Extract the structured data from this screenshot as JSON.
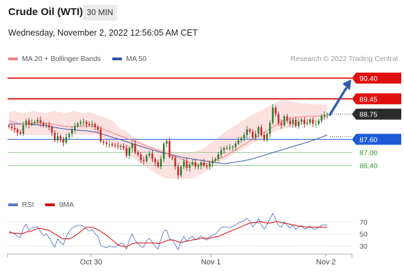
{
  "header": {
    "title": "Crude Oil (WTI)",
    "timeframe": "30 MIN",
    "datetime": "Wednesday, November 2, 2022 12:56:05 AM CET"
  },
  "legend": {
    "ma20_label": "MA 20 + Bollinger Bands",
    "ma50_label": "MA 50",
    "copyright": "Research © 2022 Trading Central"
  },
  "rsi_legend": {
    "rsi_label": "RSI",
    "ma9_label": "9MA"
  },
  "colors": {
    "up_candle": "#2e7d32",
    "down_candle": "#c62828",
    "bb_fill": "#fbd9d9",
    "ma20": "#f08080",
    "ma50": "#3355aa",
    "red_level": "#e01010",
    "blue_level": "#1e5bd8",
    "green_level": "#2a9d2a",
    "arrow": "#2e5fa8",
    "rsi": "#5577cc",
    "rsi_ma": "#dd0000"
  },
  "chart_data": [
    {
      "type": "candlestick",
      "title": "Crude Oil (WTI)",
      "timeframe": "30 MIN",
      "ylim": [
        85.2,
        90.9
      ],
      "x_ticks": [
        "Oct 30",
        "Nov 1",
        "Nov 2"
      ],
      "levels": [
        {
          "value": 90.4,
          "label": "90.40",
          "kind": "resistance",
          "color": "#e01010"
        },
        {
          "value": 89.45,
          "label": "89.45",
          "kind": "resistance",
          "color": "#e01010"
        },
        {
          "value": 88.75,
          "label": "88.75",
          "kind": "last",
          "color": "#2b2b2b"
        },
        {
          "value": 87.6,
          "label": "87.60",
          "kind": "pivot",
          "color": "#1e5bd8"
        },
        {
          "value": 87.0,
          "label": "87.00",
          "kind": "support",
          "color": "#2a9d2a"
        },
        {
          "value": 86.4,
          "label": "86.40",
          "kind": "support",
          "color": "#2a9d2a"
        }
      ],
      "close": [
        88.18,
        88.12,
        88.05,
        87.92,
        87.85,
        88.25,
        88.45,
        88.28,
        88.35,
        88.4,
        88.48,
        88.34,
        88.22,
        88.25,
        88.15,
        87.9,
        87.55,
        87.75,
        87.6,
        87.45,
        87.7,
        87.85,
        88.05,
        88.2,
        88.32,
        88.38,
        88.4,
        88.3,
        88.25,
        88.3,
        88.15,
        88.05,
        87.5,
        87.45,
        87.38,
        87.38,
        87.32,
        87.3,
        87.28,
        87.3,
        87.2,
        86.85,
        87.2,
        87.4,
        87.0,
        86.9,
        86.65,
        86.6,
        86.85,
        86.95,
        86.7,
        86.55,
        86.35,
        86.7,
        87.4,
        87.52,
        86.8,
        86.75,
        86.35,
        85.95,
        86.35,
        86.6,
        86.3,
        86.45,
        86.55,
        86.35,
        86.4,
        86.55,
        86.4,
        86.35,
        86.5,
        86.62,
        86.7,
        86.9,
        87.1,
        87.2,
        87.2,
        87.22,
        87.25,
        87.4,
        87.55,
        87.65,
        87.8,
        88.05,
        87.95,
        87.68,
        87.85,
        88.15,
        87.8,
        87.6,
        87.85,
        88.35,
        89.05,
        88.75,
        88.35,
        88.25,
        88.65,
        88.45,
        88.3,
        88.5,
        88.2,
        88.4,
        88.5,
        88.3,
        88.35,
        88.5,
        88.3,
        88.3,
        88.45,
        88.65,
        88.72,
        88.75
      ],
      "bollinger_upper": [
        88.85,
        88.88,
        88.9,
        88.82,
        88.85,
        88.8,
        88.78,
        88.85,
        88.88,
        88.9,
        88.83,
        88.85,
        88.8,
        88.78,
        88.83,
        88.88,
        88.9,
        88.84,
        88.86,
        88.8,
        88.78,
        88.82,
        88.88,
        88.9,
        88.86,
        88.82,
        88.78,
        88.82,
        88.85,
        88.82,
        88.76,
        88.7,
        88.65,
        88.6,
        88.57,
        88.52,
        88.45,
        88.35,
        88.2,
        88.05,
        88.04,
        87.94,
        87.84,
        87.76,
        87.67,
        87.58,
        87.53,
        87.45,
        87.35,
        87.3,
        87.25,
        87.2,
        87.17,
        87.15,
        87.13,
        87.11,
        87.09,
        87.05,
        87.0,
        87.0,
        87.0,
        87.0,
        87.0,
        87.0,
        87.0,
        87.05,
        87.09,
        87.12,
        87.2,
        87.3,
        87.4,
        87.5,
        87.6,
        87.7,
        87.8,
        87.9,
        88.0,
        88.09,
        88.17,
        88.25,
        88.33,
        88.41,
        88.49,
        88.57,
        88.65,
        88.72,
        88.79,
        88.86,
        88.93,
        89.0,
        89.07,
        89.14,
        89.21,
        89.28,
        89.35,
        89.38,
        89.4,
        89.38,
        89.35,
        89.33,
        89.3,
        89.26,
        89.25,
        89.25,
        89.25,
        89.22,
        89.2,
        89.2,
        89.2,
        89.2,
        89.2,
        89.2
      ],
      "bollinger_lower": [
        88.02,
        87.96,
        87.9,
        87.86,
        87.82,
        87.8,
        87.8,
        87.8,
        87.8,
        87.8,
        87.8,
        87.8,
        87.8,
        87.8,
        87.8,
        87.8,
        87.8,
        87.8,
        87.8,
        87.8,
        87.8,
        87.8,
        87.8,
        87.8,
        87.8,
        87.8,
        87.8,
        87.8,
        87.8,
        87.8,
        87.8,
        87.8,
        87.72,
        87.64,
        87.56,
        87.48,
        87.4,
        87.32,
        87.23,
        87.14,
        87.05,
        86.96,
        86.87,
        86.78,
        86.69,
        86.6,
        86.51,
        86.42,
        86.33,
        86.24,
        86.15,
        86.06,
        85.98,
        85.92,
        85.86,
        85.8,
        85.8,
        85.8,
        85.8,
        85.8,
        85.8,
        85.8,
        85.8,
        85.8,
        85.8,
        85.85,
        85.93,
        86.01,
        86.09,
        86.17,
        86.25,
        86.33,
        86.41,
        86.49,
        86.57,
        86.65,
        86.73,
        86.81,
        86.89,
        86.97,
        87.05,
        87.12,
        87.19,
        87.26,
        87.33,
        87.4,
        87.47,
        87.54,
        87.61,
        87.68,
        87.75,
        87.82,
        87.89,
        87.96,
        88.03,
        88.07,
        88.1,
        88.13,
        88.16,
        88.19,
        88.22,
        88.25,
        88.28,
        88.31,
        88.34,
        88.37,
        88.4,
        88.42,
        88.45,
        88.47,
        88.48,
        88.5
      ],
      "ma20": [
        88.45,
        88.4,
        88.38,
        88.33,
        88.32,
        88.3,
        88.3,
        88.31,
        88.32,
        88.34,
        88.35,
        88.35,
        88.34,
        88.33,
        88.32,
        88.3,
        88.28,
        88.25,
        88.22,
        88.2,
        88.18,
        88.18,
        88.18,
        88.19,
        88.2,
        88.2,
        88.2,
        88.2,
        88.2,
        88.2,
        88.2,
        88.15,
        88.1,
        88.05,
        88.0,
        87.95,
        87.9,
        87.85,
        87.8,
        87.75,
        87.7,
        87.65,
        87.6,
        87.55,
        87.5,
        87.45,
        87.4,
        87.35,
        87.3,
        87.25,
        87.2,
        87.15,
        87.1,
        87.05,
        87.0,
        86.95,
        86.9,
        86.85,
        86.8,
        86.75,
        86.7,
        86.65,
        86.6,
        86.55,
        86.5,
        86.47,
        86.45,
        86.45,
        86.47,
        86.5,
        86.55,
        86.6,
        86.65,
        86.7,
        86.75,
        86.8,
        86.88,
        86.96,
        87.04,
        87.12,
        87.2,
        87.28,
        87.36,
        87.44,
        87.52,
        87.6,
        87.68,
        87.76,
        87.84,
        87.92,
        88.0,
        88.08,
        88.16,
        88.24,
        88.32,
        88.4,
        88.45,
        88.5,
        88.54,
        88.58,
        88.6,
        88.62,
        88.63,
        88.64,
        88.65,
        88.66,
        88.66,
        88.66,
        88.66,
        88.66,
        88.66,
        88.66
      ],
      "ma50": [
        88.3,
        88.3,
        88.3,
        88.3,
        88.3,
        88.3,
        88.3,
        88.29,
        88.28,
        88.27,
        88.26,
        88.25,
        88.24,
        88.22,
        88.2,
        88.17,
        88.14,
        88.12,
        88.1,
        88.08,
        88.06,
        88.05,
        88.04,
        88.03,
        88.02,
        88.0,
        88.0,
        87.99,
        87.97,
        87.95,
        87.93,
        87.9,
        87.86,
        87.82,
        87.78,
        87.74,
        87.7,
        87.66,
        87.62,
        87.58,
        87.54,
        87.49,
        87.45,
        87.4,
        87.36,
        87.32,
        87.28,
        87.24,
        87.2,
        87.16,
        87.12,
        87.08,
        87.04,
        87.0,
        86.97,
        86.94,
        86.91,
        86.88,
        86.85,
        86.82,
        86.79,
        86.76,
        86.74,
        86.72,
        86.7,
        86.68,
        86.66,
        86.64,
        86.62,
        86.6,
        86.58,
        86.56,
        86.54,
        86.52,
        86.5,
        86.48,
        86.5,
        86.52,
        86.54,
        86.56,
        86.58,
        86.6,
        86.62,
        86.65,
        86.68,
        86.71,
        86.75,
        86.79,
        86.83,
        86.87,
        86.91,
        86.95,
        86.99,
        87.03,
        87.07,
        87.11,
        87.15,
        87.19,
        87.23,
        87.27,
        87.31,
        87.35,
        87.39,
        87.43,
        87.47,
        87.51,
        87.55,
        87.6,
        87.65,
        87.7,
        87.75,
        87.8
      ],
      "projection": {
        "from": 88.75,
        "to": 90.4
      }
    },
    {
      "type": "line",
      "title": "RSI",
      "y_ticks": [
        70,
        50,
        30
      ],
      "series": [
        {
          "name": "RSI",
          "values": [
            55,
            52,
            50,
            46,
            44,
            59,
            66,
            56,
            60,
            61,
            62,
            54,
            47,
            50,
            44,
            36,
            28,
            42,
            36,
            32,
            46,
            54,
            60,
            62,
            64,
            64,
            63,
            58,
            55,
            57,
            51,
            46,
            31,
            29,
            27,
            30,
            29,
            28,
            31,
            35,
            33,
            25,
            40,
            50,
            39,
            35,
            29,
            28,
            39,
            43,
            36,
            30,
            25,
            41,
            55,
            56,
            42,
            40,
            32,
            24,
            38,
            46,
            38,
            43,
            46,
            40,
            42,
            47,
            42,
            40,
            45,
            48,
            50,
            55,
            60,
            62,
            61,
            61,
            62,
            65,
            68,
            70,
            72,
            76,
            71,
            62,
            67,
            75,
            65,
            58,
            66,
            75,
            84,
            74,
            64,
            61,
            70,
            64,
            60,
            65,
            57,
            62,
            64,
            58,
            60,
            63,
            58,
            58,
            61,
            64,
            65,
            65
          ]
        },
        {
          "name": "9MA",
          "values": [
            52,
            52,
            51,
            51,
            50,
            51,
            53,
            54,
            55,
            57,
            59,
            59,
            58,
            57,
            56,
            53,
            50,
            47,
            44,
            42,
            42,
            42,
            44,
            47,
            50,
            54,
            58,
            61,
            61,
            61,
            59,
            57,
            54,
            51,
            48,
            44,
            40,
            36,
            32,
            30,
            30,
            29,
            31,
            34,
            35,
            35,
            35,
            35,
            35,
            35,
            35,
            35,
            34,
            35,
            37,
            39,
            40,
            40,
            39,
            37,
            36,
            37,
            38,
            39,
            40,
            41,
            42,
            43,
            43,
            43,
            43,
            44,
            45,
            46,
            48,
            50,
            52,
            54,
            56,
            58,
            60,
            62,
            64,
            66,
            68,
            69,
            69,
            70,
            70,
            69,
            68,
            68,
            69,
            70,
            70,
            69,
            68,
            67,
            66,
            65,
            64,
            63,
            62,
            62,
            61,
            61,
            61,
            61,
            61,
            61,
            61,
            61
          ]
        }
      ]
    }
  ]
}
